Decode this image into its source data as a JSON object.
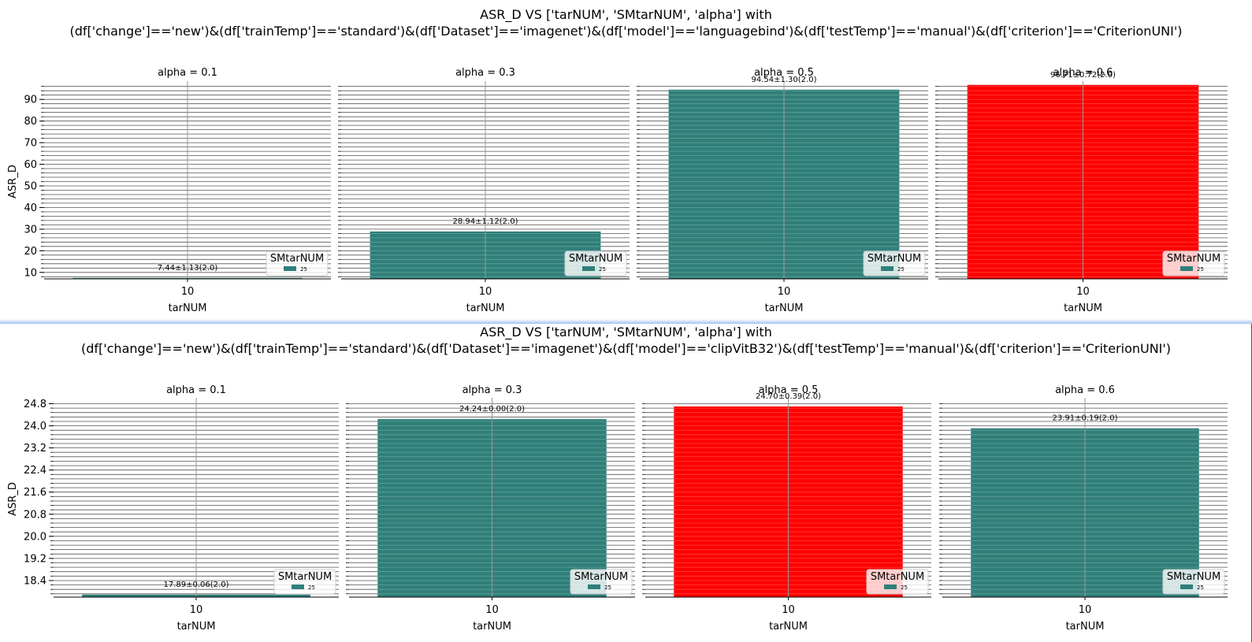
{
  "colors": {
    "bar": "#2f7f7a",
    "highlight": "#ff0000",
    "grid": "#555555",
    "vline": "#999999"
  },
  "figures": [
    {
      "title_line1": "ASR_D VS ['tarNUM', 'SMtarNUM', 'alpha'] with",
      "title_line2": "(df['change']=='new')&(df['trainTemp']=='standard')&(df['Dataset']=='imagenet')&(df['model']=='languagebind')&(df['testTemp']=='manual')&(df['criterion']=='CriterionUNI')"
    },
    {
      "title_line1": "ASR_D VS ['tarNUM', 'SMtarNUM', 'alpha'] with",
      "title_line2": "(df['change']=='new')&(df['trainTemp']=='standard')&(df['Dataset']=='imagenet')&(df['model']=='clipVitB32')&(df['testTemp']=='manual')&(df['criterion']=='CriterionUNI')"
    }
  ],
  "chart_data": [
    {
      "type": "bar",
      "ylabel": "ASR_D",
      "xlabel": "tarNUM",
      "ylim": [
        7,
        97
      ],
      "yticks": [
        10,
        20,
        30,
        40,
        50,
        60,
        70,
        80,
        90
      ],
      "ytick_labels": [
        "10",
        "20",
        "30",
        "40",
        "50",
        "60",
        "70",
        "80",
        "90"
      ],
      "grid": true,
      "legend": {
        "title": "SMtarNUM",
        "entries": [
          "25"
        ],
        "position": "lower right"
      },
      "panels": [
        {
          "title": "alpha = 0.1",
          "category": "10",
          "value": 7.44,
          "label": "7.44±1.13(2.0)",
          "highlight": false
        },
        {
          "title": "alpha = 0.3",
          "category": "10",
          "value": 28.94,
          "label": "28.94±1.12(2.0)",
          "highlight": false
        },
        {
          "title": "alpha = 0.5",
          "category": "10",
          "value": 94.54,
          "label": "94.54±1.30(2.0)",
          "highlight": false
        },
        {
          "title": "alpha = 0.6",
          "category": "10",
          "value": 96.71,
          "label": "96.71±0.72(2.0)",
          "highlight": true
        }
      ]
    },
    {
      "type": "bar",
      "ylabel": "ASR_D",
      "xlabel": "tarNUM",
      "ylim": [
        17.8,
        24.9
      ],
      "yticks": [
        18.4,
        19.2,
        20.0,
        20.8,
        21.6,
        22.4,
        23.2,
        24.0,
        24.8
      ],
      "ytick_labels": [
        "18.4",
        "19.2",
        "20.0",
        "20.8",
        "21.6",
        "22.4",
        "23.2",
        "24.0",
        "24.8"
      ],
      "grid": true,
      "legend": {
        "title": "SMtarNUM",
        "entries": [
          "25"
        ],
        "position": "lower right"
      },
      "panels": [
        {
          "title": "alpha = 0.1",
          "category": "10",
          "value": 17.89,
          "label": "17.89±0.06(2.0)",
          "highlight": false
        },
        {
          "title": "alpha = 0.3",
          "category": "10",
          "value": 24.24,
          "label": "24.24±0.00(2.0)",
          "highlight": false
        },
        {
          "title": "alpha = 0.5",
          "category": "10",
          "value": 24.7,
          "label": "24.70±0.39(2.0)",
          "highlight": true
        },
        {
          "title": "alpha = 0.6",
          "category": "10",
          "value": 23.91,
          "label": "23.91±0.19(2.0)",
          "highlight": false
        }
      ]
    }
  ]
}
